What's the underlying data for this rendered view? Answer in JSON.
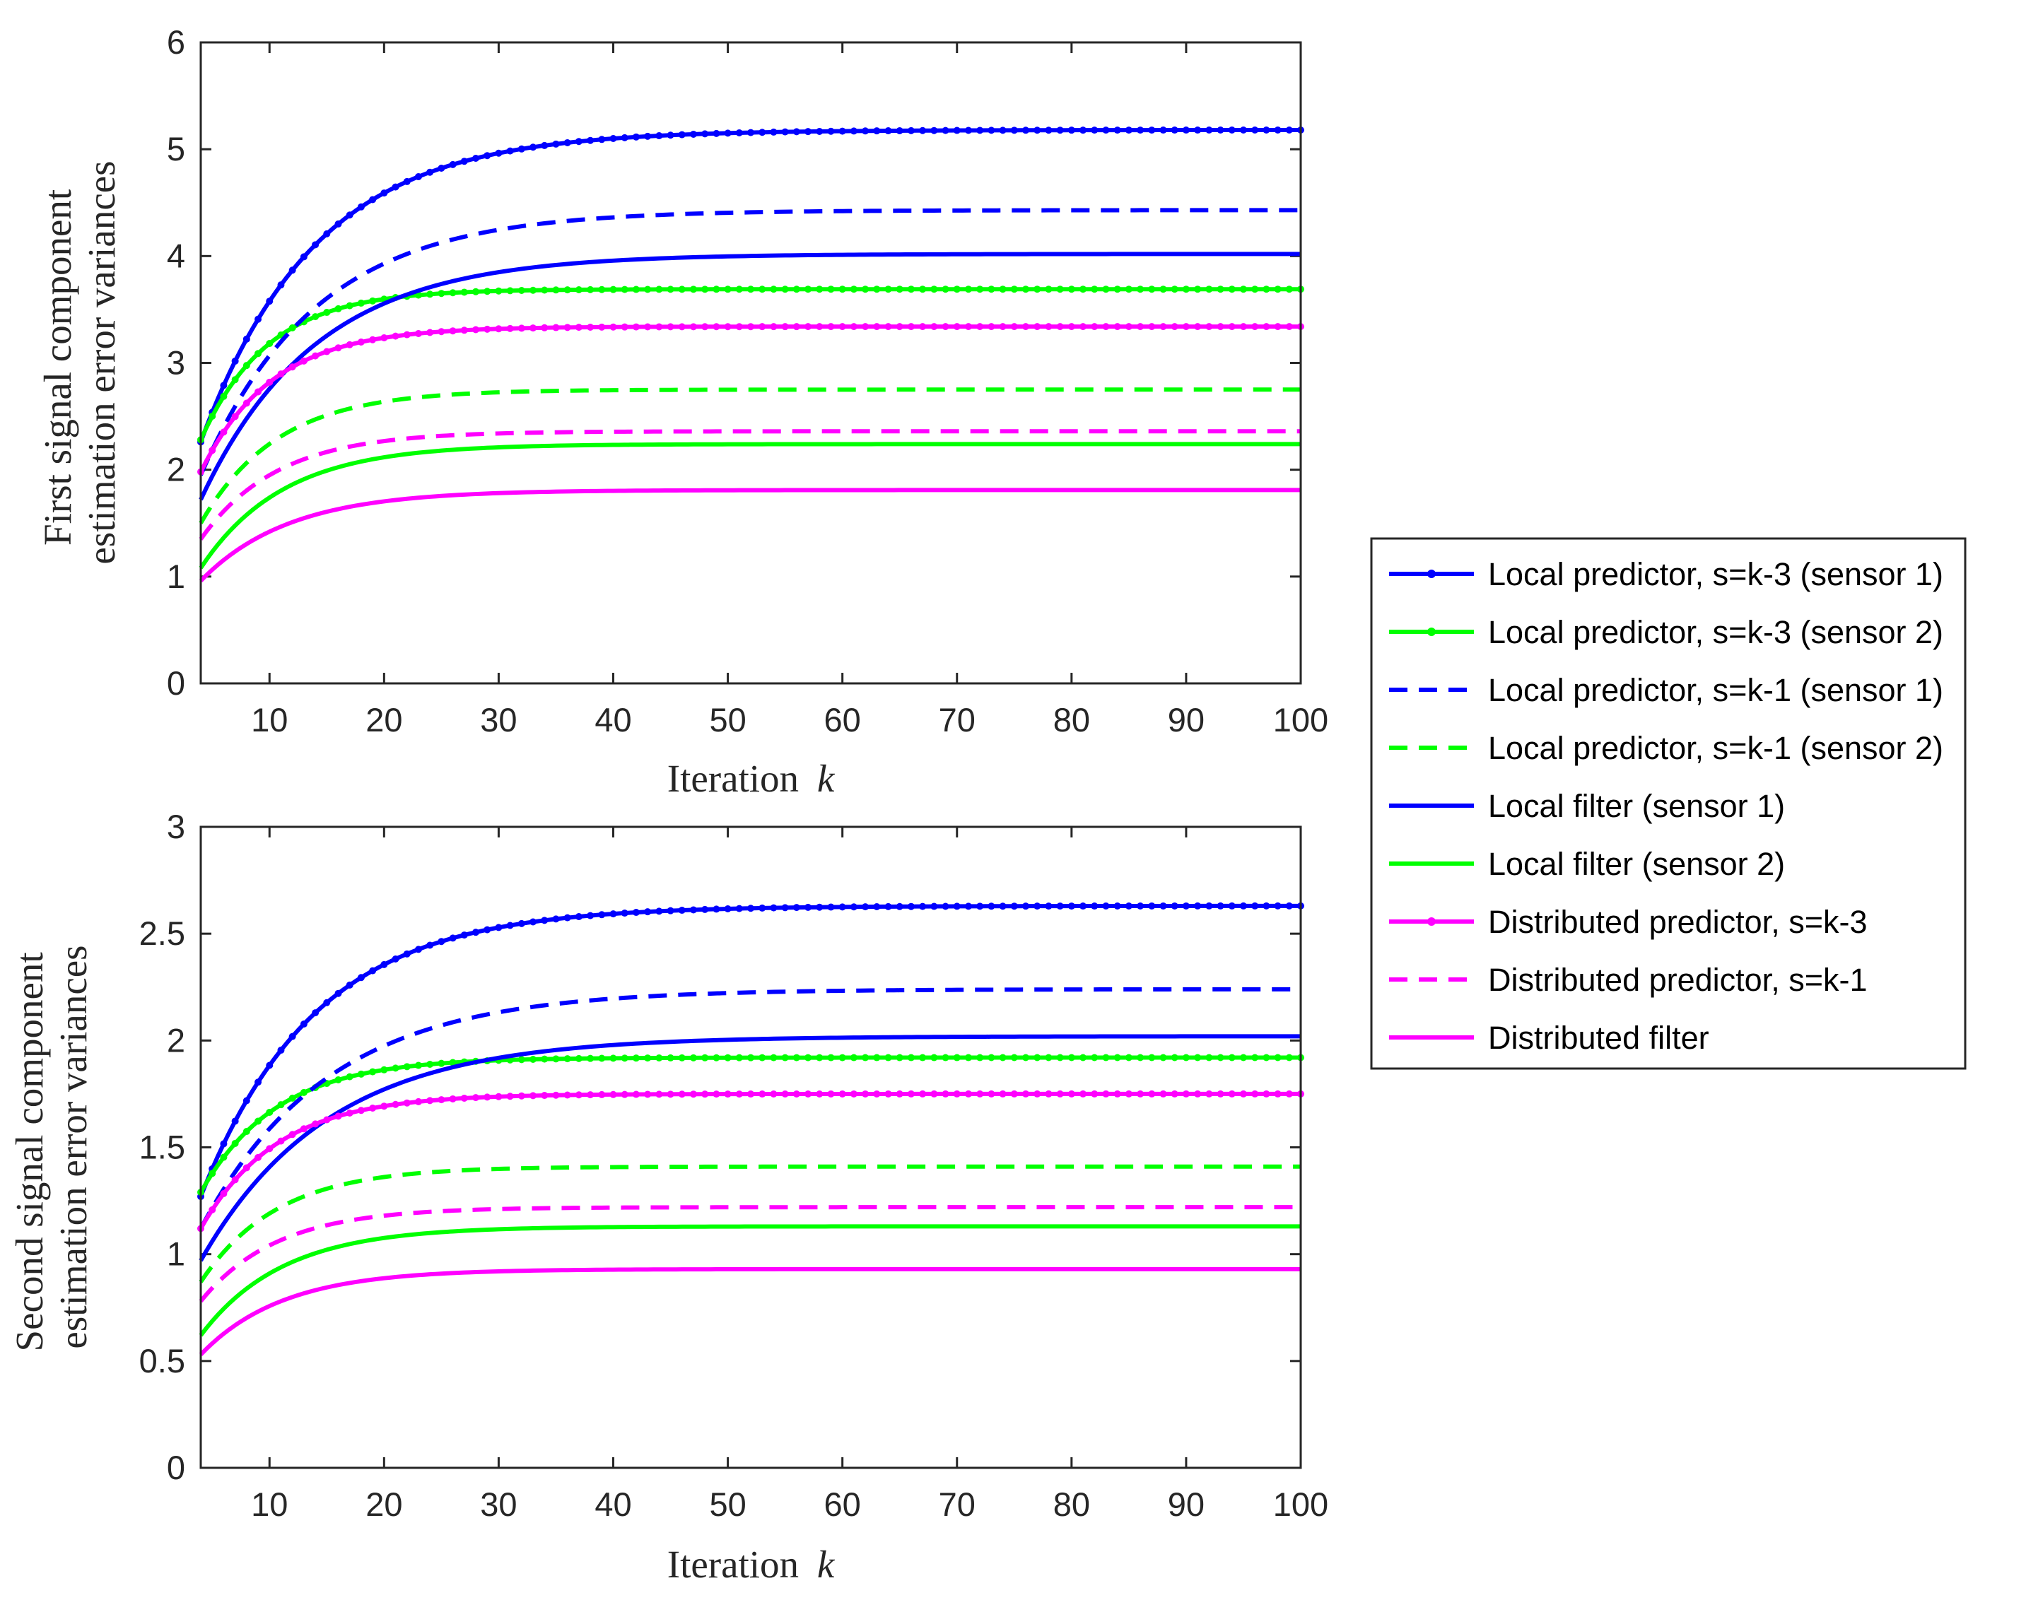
{
  "chart_data": [
    {
      "type": "line",
      "xlabel": "Iteration",
      "xlabel_var": "k",
      "ylabel_lines": [
        "First signal component",
        "estimation error variances"
      ],
      "xlim": [
        4,
        100
      ],
      "ylim": [
        0,
        6
      ],
      "xticks": [
        10,
        20,
        30,
        40,
        50,
        60,
        70,
        80,
        90,
        100
      ],
      "yticks": [
        0,
        1,
        2,
        3,
        4,
        5,
        6
      ],
      "series": [
        {
          "name": "Local predictor, s=k-3 (sensor 1)",
          "start": 2.26,
          "end": 5.18,
          "rate": 0.1
        },
        {
          "name": "Local predictor, s=k-3 (sensor 2)",
          "start": 2.28,
          "end": 3.69,
          "rate": 0.17
        },
        {
          "name": "Local predictor, s=k-1 (sensor 1)",
          "start": 1.95,
          "end": 4.43,
          "rate": 0.1
        },
        {
          "name": "Local predictor, s=k-1 (sensor 2)",
          "start": 1.5,
          "end": 2.75,
          "rate": 0.15
        },
        {
          "name": "Local filter (sensor 1)",
          "start": 1.72,
          "end": 4.02,
          "rate": 0.1
        },
        {
          "name": "Local filter (sensor 2)",
          "start": 1.08,
          "end": 2.24,
          "rate": 0.14
        },
        {
          "name": "Distributed predictor, s=k-3",
          "start": 1.98,
          "end": 3.34,
          "rate": 0.16
        },
        {
          "name": "Distributed predictor, s=k-1",
          "start": 1.35,
          "end": 2.36,
          "rate": 0.15
        },
        {
          "name": "Distributed filter",
          "start": 0.96,
          "end": 1.81,
          "rate": 0.13
        }
      ]
    },
    {
      "type": "line",
      "xlabel": "Iteration",
      "xlabel_var": "k",
      "ylabel_lines": [
        "Second signal component",
        "estimation error variances"
      ],
      "xlim": [
        4,
        100
      ],
      "ylim": [
        0,
        3
      ],
      "xticks": [
        10,
        20,
        30,
        40,
        50,
        60,
        70,
        80,
        90,
        100
      ],
      "yticks": [
        0,
        0.5,
        1,
        1.5,
        2,
        2.5,
        3
      ],
      "series": [
        {
          "name": "Local predictor, s=k-3 (sensor 1)",
          "start": 1.27,
          "end": 2.63,
          "rate": 0.1
        },
        {
          "name": "Local predictor, s=k-3 (sensor 2)",
          "start": 1.29,
          "end": 1.92,
          "rate": 0.15
        },
        {
          "name": "Local predictor, s=k-1 (sensor 1)",
          "start": 1.12,
          "end": 2.24,
          "rate": 0.09
        },
        {
          "name": "Local predictor, s=k-1 (sensor 2)",
          "start": 0.87,
          "end": 1.41,
          "rate": 0.15
        },
        {
          "name": "Local filter (sensor 1)",
          "start": 0.97,
          "end": 2.02,
          "rate": 0.09
        },
        {
          "name": "Local filter (sensor 2)",
          "start": 0.62,
          "end": 1.13,
          "rate": 0.14
        },
        {
          "name": "Distributed predictor, s=k-3",
          "start": 1.12,
          "end": 1.75,
          "rate": 0.15
        },
        {
          "name": "Distributed predictor, s=k-1",
          "start": 0.78,
          "end": 1.22,
          "rate": 0.15
        },
        {
          "name": "Distributed filter",
          "start": 0.53,
          "end": 0.93,
          "rate": 0.14
        }
      ]
    }
  ],
  "legend": {
    "placement": "right",
    "entries": [
      {
        "label": "Local predictor, s=k-3 (sensor 1)",
        "color": "#0000ff",
        "style": "solid-dot"
      },
      {
        "label": "Local predictor, s=k-3 (sensor 2)",
        "color": "#00ff00",
        "style": "solid-dot"
      },
      {
        "label": "Local predictor, s=k-1 (sensor 1)",
        "color": "#0000ff",
        "style": "dashed"
      },
      {
        "label": "Local predictor, s=k-1 (sensor 2)",
        "color": "#00ff00",
        "style": "dashed"
      },
      {
        "label": "Local filter (sensor 1)",
        "color": "#0000ff",
        "style": "solid"
      },
      {
        "label": "Local filter (sensor 2)",
        "color": "#00ff00",
        "style": "solid"
      },
      {
        "label": "Distributed predictor, s=k-3",
        "color": "#ff00ff",
        "style": "solid-dot"
      },
      {
        "label": "Distributed predictor, s=k-1",
        "color": "#ff00ff",
        "style": "dashed"
      },
      {
        "label": "Distributed filter",
        "color": "#ff00ff",
        "style": "solid"
      }
    ]
  }
}
